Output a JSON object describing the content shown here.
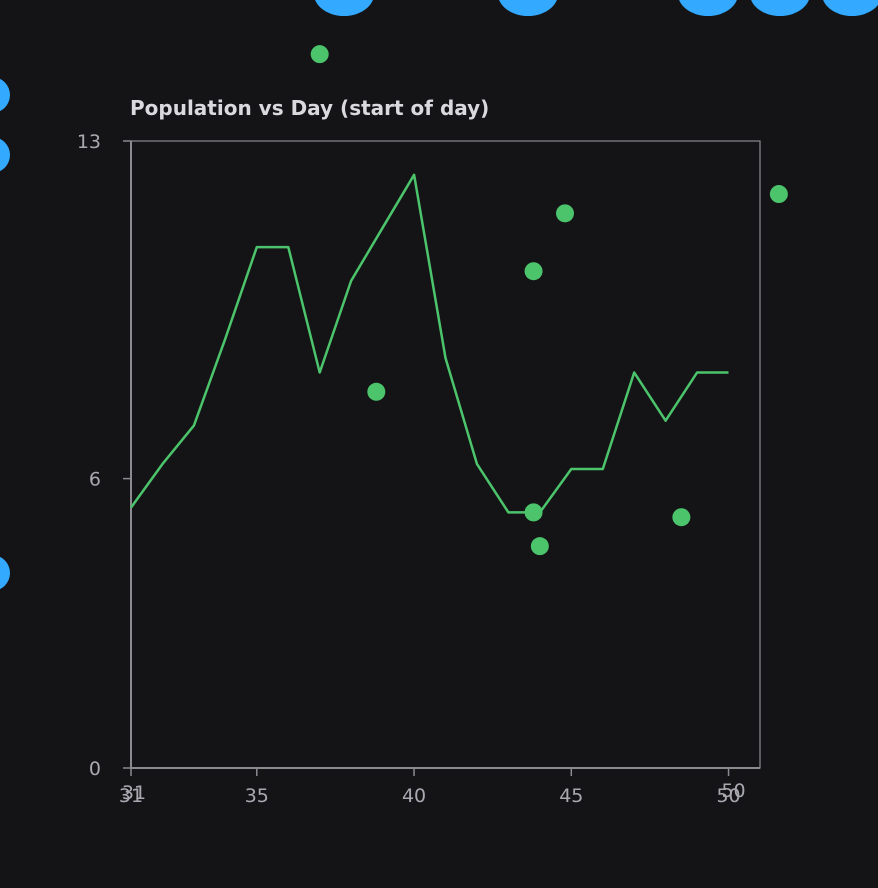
{
  "chart_data": {
    "type": "line",
    "title": "Population vs Day (start of day)",
    "xlabel": "",
    "ylabel": "",
    "xlim": [
      31,
      51
    ],
    "ylim": [
      0,
      13
    ],
    "x_ticks": [
      "31",
      "35",
      "40",
      "45",
      "50"
    ],
    "x_tick_values": [
      31,
      35,
      40,
      45,
      50
    ],
    "x_tick_extra_labels": [
      "31",
      "50"
    ],
    "y_ticks": [
      "13",
      "6",
      "0"
    ],
    "y_tick_values": [
      13,
      6,
      0
    ],
    "grid": false,
    "colors": {
      "line": "#4cc46b",
      "points": "#4cc46b",
      "offchart_blobs": "#33aaff",
      "background": "#141417",
      "axis": "#8a8a90"
    },
    "series": [
      {
        "type": "line",
        "x": [
          31,
          32,
          33,
          34,
          35,
          36,
          37,
          38,
          39,
          40,
          41,
          42,
          43,
          44,
          45,
          46,
          47,
          48,
          49,
          50
        ],
        "y": [
          5.4,
          6.3,
          7.1,
          8.9,
          10.8,
          10.8,
          8.2,
          10.1,
          11.2,
          12.3,
          8.5,
          6.3,
          5.3,
          5.3,
          6.2,
          6.2,
          8.2,
          7.2,
          8.2,
          8.2
        ]
      },
      {
        "type": "scatter",
        "x": [
          37.0,
          38.8,
          43.8,
          44.8,
          43.8,
          44.0,
          48.5,
          51.6
        ],
        "y": [
          14.8,
          7.8,
          10.3,
          11.5,
          5.3,
          4.6,
          5.2,
          11.9
        ]
      }
    ]
  }
}
